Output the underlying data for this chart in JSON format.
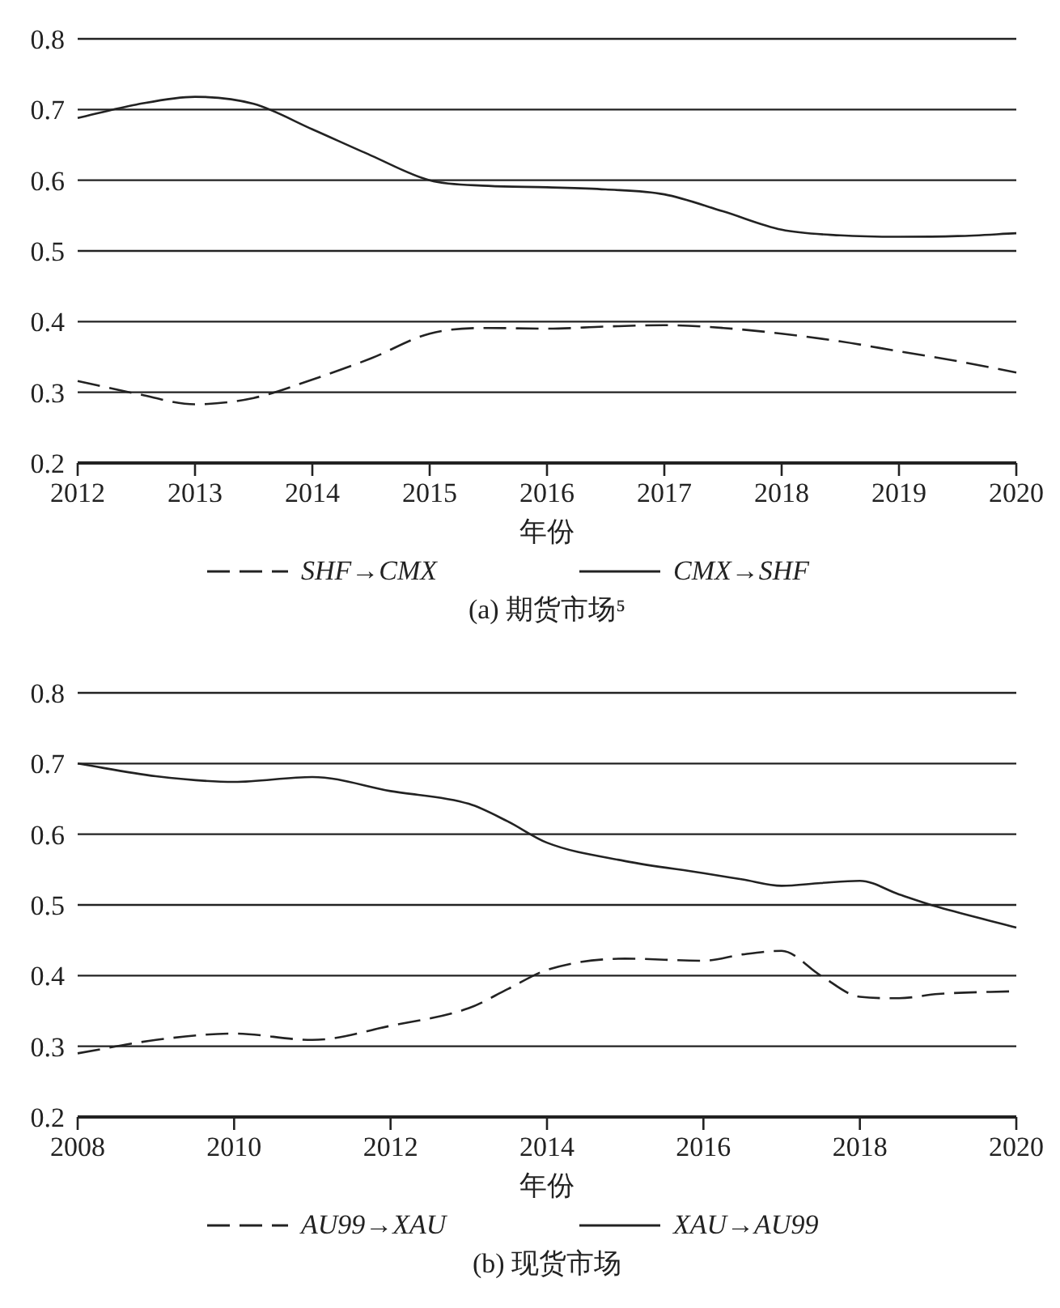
{
  "chart_data": [
    {
      "type": "line",
      "title": "(a) 期货市场⁵",
      "xlabel": "年份",
      "x": [
        2012,
        2012.5,
        2013,
        2013.5,
        2014,
        2014.5,
        2015,
        2015.5,
        2016,
        2016.5,
        2017,
        2017.5,
        2018,
        2018.5,
        2019,
        2019.5,
        2020
      ],
      "series": [
        {
          "name": "SHF→CMX",
          "color": "#222222",
          "line_style": "dashed",
          "values": [
            0.316,
            0.298,
            0.283,
            0.292,
            0.318,
            0.348,
            0.383,
            0.391,
            0.39,
            0.393,
            0.395,
            0.391,
            0.383,
            0.372,
            0.358,
            0.344,
            0.328
          ]
        },
        {
          "name": "CMX→SHF",
          "color": "#222222",
          "line_style": "solid",
          "values": [
            0.688,
            0.707,
            0.718,
            0.708,
            0.672,
            0.635,
            0.6,
            0.592,
            0.59,
            0.587,
            0.58,
            0.556,
            0.53,
            0.522,
            0.52,
            0.521,
            0.525
          ]
        }
      ],
      "xlim": [
        2012,
        2020
      ],
      "xticks": [
        2012,
        2013,
        2014,
        2015,
        2016,
        2017,
        2018,
        2019,
        2020
      ],
      "ylim": [
        0.2,
        0.8
      ],
      "yticks": [
        0.2,
        0.3,
        0.4,
        0.5,
        0.6,
        0.7,
        0.8
      ],
      "grid": "y",
      "legend": "bottom",
      "marker": "none"
    },
    {
      "type": "line",
      "title": "(b) 现货市场",
      "xlabel": "年份",
      "x": [
        2008,
        2009,
        2010,
        2011,
        2012,
        2013,
        2013.5,
        2014,
        2015,
        2016,
        2016.5,
        2017,
        2017.5,
        2018,
        2018.5,
        2019,
        2020
      ],
      "series": [
        {
          "name": "AU99→XAU",
          "color": "#222222",
          "line_style": "dashed",
          "values": [
            0.29,
            0.309,
            0.318,
            0.309,
            0.329,
            0.354,
            0.381,
            0.408,
            0.424,
            0.421,
            0.43,
            0.435,
            0.4,
            0.37,
            0.368,
            0.374,
            0.378
          ]
        },
        {
          "name": "XAU→AU99",
          "color": "#222222",
          "line_style": "solid",
          "values": [
            0.7,
            0.682,
            0.674,
            0.681,
            0.661,
            0.643,
            0.618,
            0.588,
            0.562,
            0.545,
            0.536,
            0.527,
            0.531,
            0.534,
            0.515,
            0.497,
            0.468
          ]
        }
      ],
      "xlim": [
        2008,
        2020
      ],
      "xticks": [
        2008,
        2010,
        2012,
        2014,
        2016,
        2018,
        2020
      ],
      "ylim": [
        0.2,
        0.8
      ],
      "yticks": [
        0.2,
        0.3,
        0.4,
        0.5,
        0.6,
        0.7,
        0.8
      ],
      "grid": "y",
      "legend": "bottom",
      "marker": "none"
    }
  ]
}
